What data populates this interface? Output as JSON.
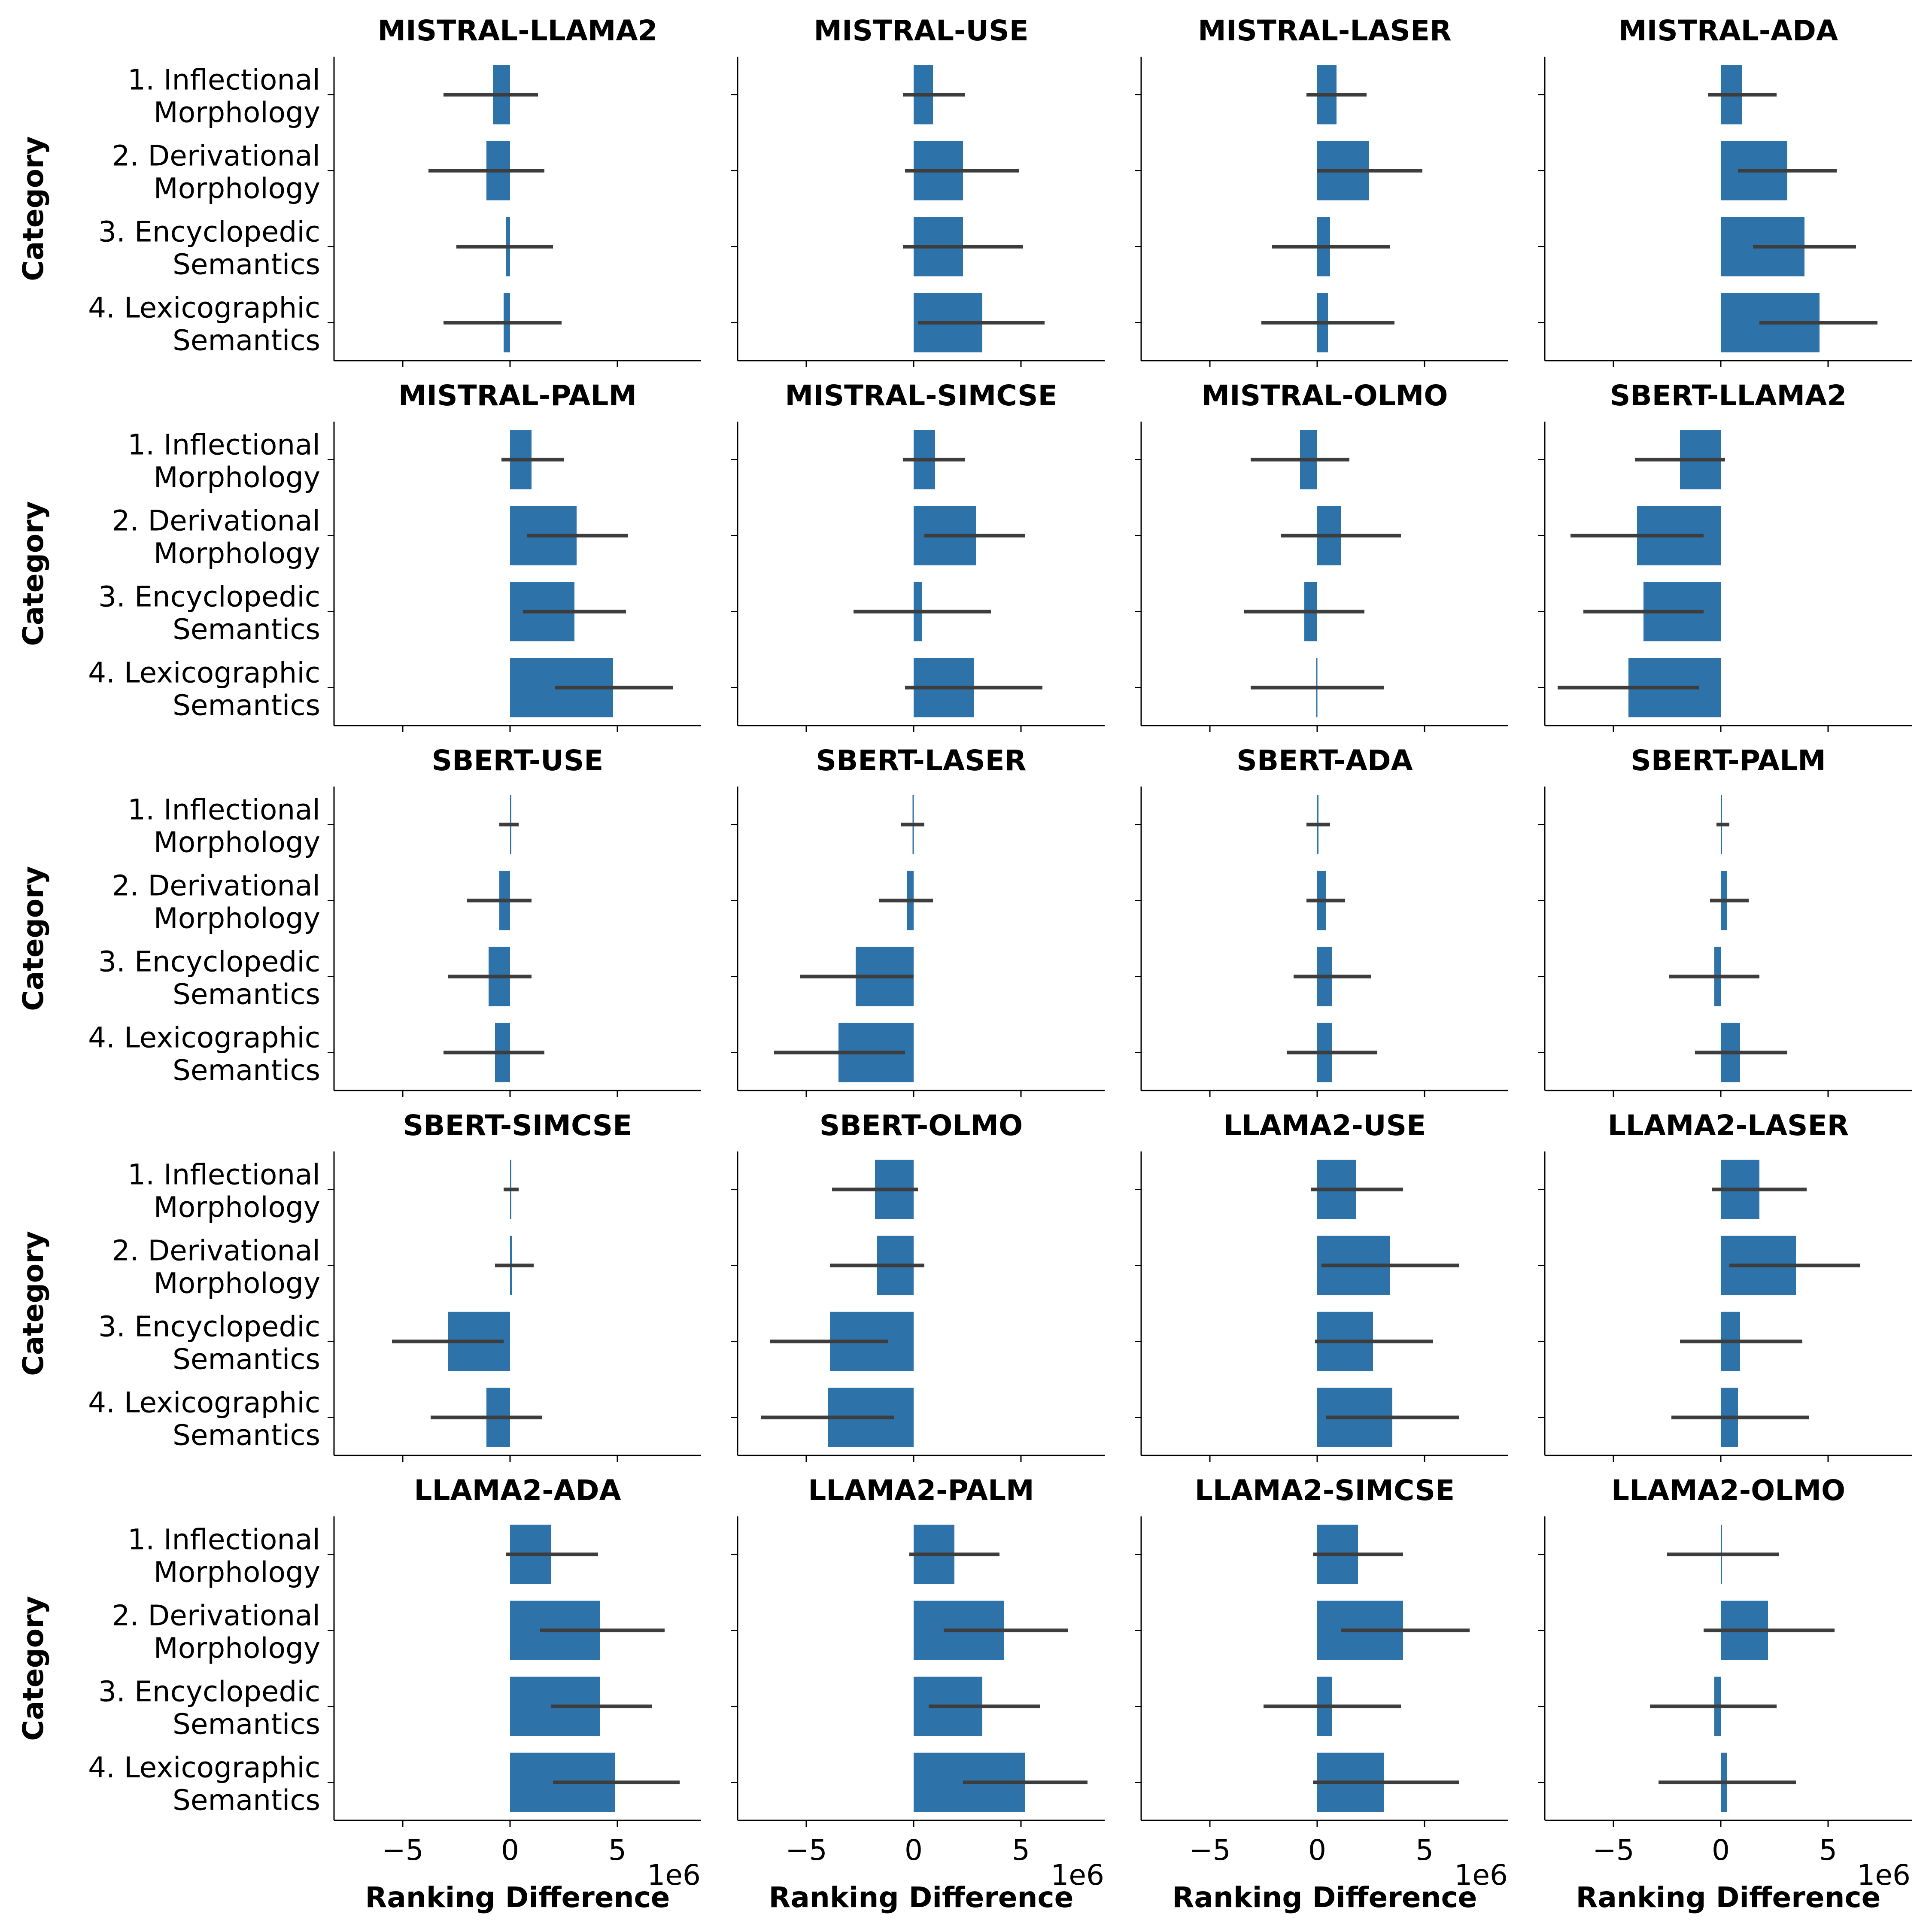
{
  "chart_data": {
    "type": "bar",
    "orientation": "horizontal",
    "xlabel": "Ranking Difference",
    "ylabel": "Category",
    "x_scale_offset": "1e6",
    "xlim": [
      -8.2,
      8.9
    ],
    "xticks": [
      -5,
      0,
      5
    ],
    "xtick_labels": [
      "−5",
      "0",
      "5"
    ],
    "categories": [
      [
        "1. Inflectional",
        "Morphology"
      ],
      [
        "2. Derivational",
        "Morphology"
      ],
      [
        "3. Encyclopedic",
        "Semantics"
      ],
      [
        "4. Lexicographic",
        "Semantics"
      ]
    ],
    "colors": {
      "bar": "#2e72aa",
      "errorbar": "#3d3d3d",
      "axis": "#000000"
    },
    "panels": [
      {
        "title": "MISTRAL-LLAMA2",
        "values": [
          -0.8,
          -1.1,
          -0.2,
          -0.3
        ],
        "ci": [
          [
            -3.1,
            1.3
          ],
          [
            -3.8,
            1.6
          ],
          [
            -2.5,
            2.0
          ],
          [
            -3.1,
            2.4
          ]
        ]
      },
      {
        "title": "MISTRAL-USE",
        "values": [
          0.9,
          2.3,
          2.3,
          3.2
        ],
        "ci": [
          [
            -0.5,
            2.4
          ],
          [
            -0.4,
            4.9
          ],
          [
            -0.5,
            5.1
          ],
          [
            0.2,
            6.1
          ]
        ]
      },
      {
        "title": "MISTRAL-LASER",
        "values": [
          0.9,
          2.4,
          0.6,
          0.5
        ],
        "ci": [
          [
            -0.5,
            2.3
          ],
          [
            0.0,
            4.9
          ],
          [
            -2.1,
            3.4
          ],
          [
            -2.6,
            3.6
          ]
        ]
      },
      {
        "title": "MISTRAL-ADA",
        "values": [
          1.0,
          3.1,
          3.9,
          4.6
        ],
        "ci": [
          [
            -0.6,
            2.6
          ],
          [
            0.8,
            5.4
          ],
          [
            1.5,
            6.3
          ],
          [
            1.8,
            7.3
          ]
        ]
      },
      {
        "title": "MISTRAL-PALM",
        "values": [
          1.0,
          3.1,
          3.0,
          4.8
        ],
        "ci": [
          [
            -0.4,
            2.5
          ],
          [
            0.8,
            5.5
          ],
          [
            0.6,
            5.4
          ],
          [
            2.1,
            7.6
          ]
        ]
      },
      {
        "title": "MISTRAL-SIMCSE",
        "values": [
          1.0,
          2.9,
          0.4,
          2.8
        ],
        "ci": [
          [
            -0.5,
            2.4
          ],
          [
            0.5,
            5.2
          ],
          [
            -2.8,
            3.6
          ],
          [
            -0.4,
            6.0
          ]
        ]
      },
      {
        "title": "MISTRAL-OLMO",
        "values": [
          -0.8,
          1.1,
          -0.6,
          -0.05
        ],
        "ci": [
          [
            -3.1,
            1.5
          ],
          [
            -1.7,
            3.9
          ],
          [
            -3.4,
            2.2
          ],
          [
            -3.1,
            3.1
          ]
        ]
      },
      {
        "title": "SBERT-LLAMA2",
        "values": [
          -1.9,
          -3.9,
          -3.6,
          -4.3
        ],
        "ci": [
          [
            -4.0,
            0.2
          ],
          [
            -7.0,
            -0.8
          ],
          [
            -6.4,
            -0.8
          ],
          [
            -7.6,
            -1.0
          ]
        ]
      },
      {
        "title": "SBERT-USE",
        "values": [
          0.0,
          -0.5,
          -1.0,
          -0.7
        ],
        "ci": [
          [
            -0.5,
            0.4
          ],
          [
            -2.0,
            1.0
          ],
          [
            -2.9,
            1.0
          ],
          [
            -3.1,
            1.6
          ]
        ]
      },
      {
        "title": "SBERT-LASER",
        "values": [
          -0.05,
          -0.3,
          -2.7,
          -3.5
        ],
        "ci": [
          [
            -0.6,
            0.5
          ],
          [
            -1.6,
            0.9
          ],
          [
            -5.3,
            0.0
          ],
          [
            -6.5,
            -0.4
          ]
        ]
      },
      {
        "title": "SBERT-ADA",
        "values": [
          0.05,
          0.4,
          0.7,
          0.7
        ],
        "ci": [
          [
            -0.5,
            0.6
          ],
          [
            -0.5,
            1.3
          ],
          [
            -1.1,
            2.5
          ],
          [
            -1.4,
            2.8
          ]
        ]
      },
      {
        "title": "SBERT-PALM",
        "values": [
          0.05,
          0.3,
          -0.3,
          0.9
        ],
        "ci": [
          [
            -0.2,
            0.4
          ],
          [
            -0.5,
            1.3
          ],
          [
            -2.4,
            1.8
          ],
          [
            -1.2,
            3.1
          ]
        ]
      },
      {
        "title": "SBERT-SIMCSE",
        "values": [
          0.0,
          0.1,
          -2.9,
          -1.1
        ],
        "ci": [
          [
            -0.3,
            0.4
          ],
          [
            -0.7,
            1.1
          ],
          [
            -5.5,
            -0.3
          ],
          [
            -3.7,
            1.5
          ]
        ]
      },
      {
        "title": "SBERT-OLMO",
        "values": [
          -1.8,
          -1.7,
          -3.9,
          -4.0
        ],
        "ci": [
          [
            -3.8,
            0.2
          ],
          [
            -3.9,
            0.5
          ],
          [
            -6.7,
            -1.2
          ],
          [
            -7.1,
            -0.9
          ]
        ]
      },
      {
        "title": "LLAMA2-USE",
        "values": [
          1.8,
          3.4,
          2.6,
          3.5
        ],
        "ci": [
          [
            -0.3,
            4.0
          ],
          [
            0.2,
            6.6
          ],
          [
            -0.1,
            5.4
          ],
          [
            0.4,
            6.6
          ]
        ]
      },
      {
        "title": "LLAMA2-LASER",
        "values": [
          1.8,
          3.5,
          0.9,
          0.8
        ],
        "ci": [
          [
            -0.4,
            4.0
          ],
          [
            0.4,
            6.5
          ],
          [
            -1.9,
            3.8
          ],
          [
            -2.3,
            4.1
          ]
        ]
      },
      {
        "title": "LLAMA2-ADA",
        "values": [
          1.9,
          4.2,
          4.2,
          4.9
        ],
        "ci": [
          [
            -0.2,
            4.1
          ],
          [
            1.4,
            7.2
          ],
          [
            1.9,
            6.6
          ],
          [
            2.0,
            7.9
          ]
        ]
      },
      {
        "title": "LLAMA2-PALM",
        "values": [
          1.9,
          4.2,
          3.2,
          5.2
        ],
        "ci": [
          [
            -0.2,
            4.0
          ],
          [
            1.4,
            7.2
          ],
          [
            0.7,
            5.9
          ],
          [
            2.3,
            8.1
          ]
        ]
      },
      {
        "title": "LLAMA2-SIMCSE",
        "values": [
          1.9,
          4.0,
          0.7,
          3.1
        ],
        "ci": [
          [
            -0.2,
            4.0
          ],
          [
            1.1,
            7.1
          ],
          [
            -2.5,
            3.9
          ],
          [
            -0.2,
            6.6
          ]
        ]
      },
      {
        "title": "LLAMA2-OLMO",
        "values": [
          0.05,
          2.2,
          -0.3,
          0.3
        ],
        "ci": [
          [
            -2.5,
            2.7
          ],
          [
            -0.8,
            5.3
          ],
          [
            -3.3,
            2.6
          ],
          [
            -2.9,
            3.5
          ]
        ]
      }
    ]
  }
}
